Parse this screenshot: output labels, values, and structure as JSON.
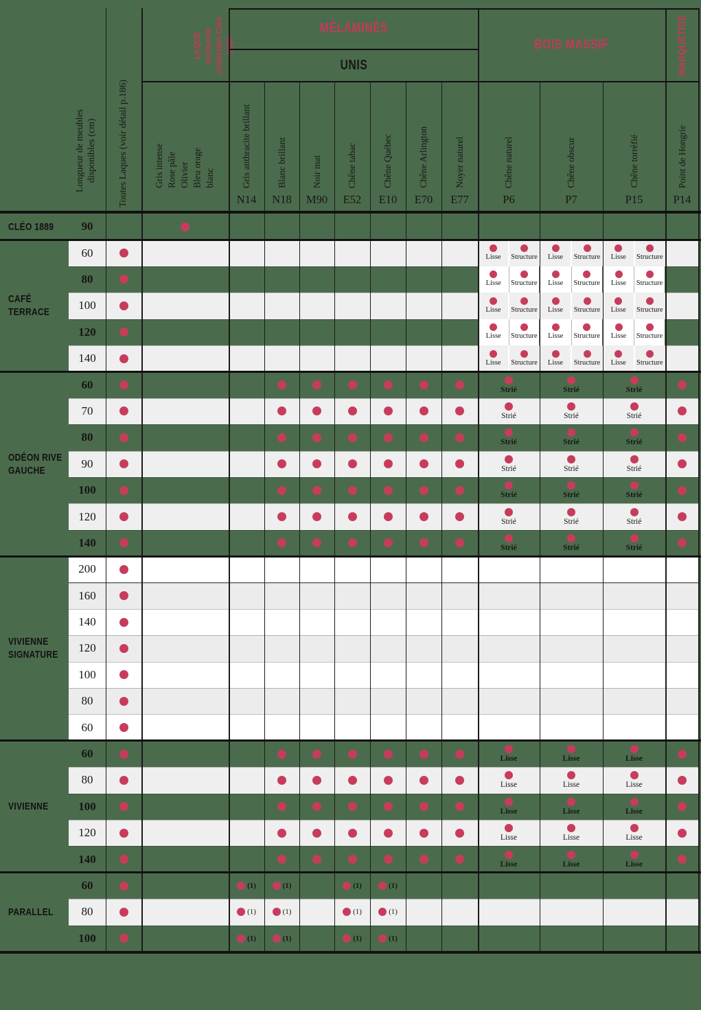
{
  "colors": {
    "background_green": "#4b6b4d",
    "row_light": "#efefef",
    "row_white": "#ffffff",
    "row_alt": "#ececec",
    "dot": "#c73c5c",
    "accent_red": "#c23a5a"
  },
  "header": {
    "length_label": "Longueur de meubles\ndisponibles (cm)",
    "toutes_laques_label": "Toutes Laques (voir détail p.186)",
    "laque_exclusive_title": "LAQUE exclusive\ncollection Cléo 1889",
    "laque_colors": "Gris intense\nRose pâle\nOlivier\nBleu orage\nblanc",
    "bands": {
      "melamines": "MÉLAMINÉS",
      "unis": "UNIS",
      "bois_massif": "BOIS MASSIF",
      "marqueterie": "MARQUETRIE"
    },
    "columns": [
      {
        "id": "n14",
        "label": "Gris anthracite brillant",
        "code": "N14"
      },
      {
        "id": "n18",
        "label": "Blanc brillant",
        "code": "N18"
      },
      {
        "id": "m90",
        "label": "Noir mat",
        "code": "M90"
      },
      {
        "id": "e52",
        "label": "Chêne tabac",
        "code": "E52"
      },
      {
        "id": "e10",
        "label": "Chêne Québec",
        "code": "E10"
      },
      {
        "id": "e70",
        "label": "Chêne Arlington",
        "code": "E70"
      },
      {
        "id": "e77",
        "label": "Noyer naturel",
        "code": "E77"
      },
      {
        "id": "p6",
        "label": "Chêne naturel",
        "code": "P6"
      },
      {
        "id": "p7",
        "label": "Chêne obscur",
        "code": "P7"
      },
      {
        "id": "p15",
        "label": "Chêne torréfié",
        "code": "P15"
      },
      {
        "id": "p14",
        "label": "Point de Hongrie",
        "code": "P14"
      }
    ]
  },
  "annotations": {
    "lisse": "Lisse",
    "structure": "Structure",
    "strie": "Strié",
    "note1": "(1)"
  },
  "groups": [
    {
      "name": "CLÉO 1889",
      "rows": [
        {
          "size": "90",
          "shade": "green"
        }
      ],
      "marks": {
        "laque": "dot"
      }
    },
    {
      "name": "CAFÉ\nTERRACE",
      "rows": [
        {
          "size": "60",
          "shade": "light"
        },
        {
          "size": "80",
          "shade": "green"
        },
        {
          "size": "100",
          "shade": "light"
        },
        {
          "size": "120",
          "shade": "green"
        },
        {
          "size": "140",
          "shade": "light"
        }
      ],
      "marks": {
        "tl": "dot",
        "p6": "split",
        "p7": "split",
        "p15": "split"
      }
    },
    {
      "name": "ODÉON RIVE\nGAUCHE",
      "wood_label": "Strié",
      "rows": [
        {
          "size": "60",
          "shade": "green"
        },
        {
          "size": "70",
          "shade": "light"
        },
        {
          "size": "80",
          "shade": "green"
        },
        {
          "size": "90",
          "shade": "light"
        },
        {
          "size": "100",
          "shade": "green"
        },
        {
          "size": "120",
          "shade": "light"
        },
        {
          "size": "140",
          "shade": "green"
        }
      ],
      "marks": {
        "tl": "dot",
        "n18": "dot",
        "m90": "dot",
        "e52": "dot",
        "e10": "dot",
        "e70": "dot",
        "e77": "dot",
        "p6": "wood",
        "p7": "wood",
        "p15": "wood",
        "p14": "dot"
      }
    },
    {
      "name": "VIVIENNE\nSIGNATURE",
      "rows": [
        {
          "size": "200",
          "shade": "white"
        },
        {
          "size": "160",
          "shade": "alt"
        },
        {
          "size": "140",
          "shade": "white"
        },
        {
          "size": "120",
          "shade": "alt"
        },
        {
          "size": "100",
          "shade": "white"
        },
        {
          "size": "80",
          "shade": "alt"
        },
        {
          "size": "60",
          "shade": "white"
        }
      ],
      "marks": {
        "tl": "dot"
      }
    },
    {
      "name": "VIVIENNE",
      "wood_label": "Lisse",
      "rows": [
        {
          "size": "60",
          "shade": "green"
        },
        {
          "size": "80",
          "shade": "light"
        },
        {
          "size": "100",
          "shade": "green"
        },
        {
          "size": "120",
          "shade": "light"
        },
        {
          "size": "140",
          "shade": "green"
        }
      ],
      "marks": {
        "tl": "dot",
        "n18": "dot",
        "m90": "dot",
        "e52": "dot",
        "e10": "dot",
        "e70": "dot",
        "e77": "dot",
        "p6": "wood",
        "p7": "wood",
        "p15": "wood",
        "p14": "dot"
      }
    },
    {
      "name": "PARALLEL",
      "rows": [
        {
          "size": "60",
          "shade": "green"
        },
        {
          "size": "80",
          "shade": "light"
        },
        {
          "size": "100",
          "shade": "green"
        }
      ],
      "marks": {
        "tl": "dot",
        "n14": "note",
        "n18": "note",
        "e52": "note",
        "e10": "note"
      }
    }
  ]
}
